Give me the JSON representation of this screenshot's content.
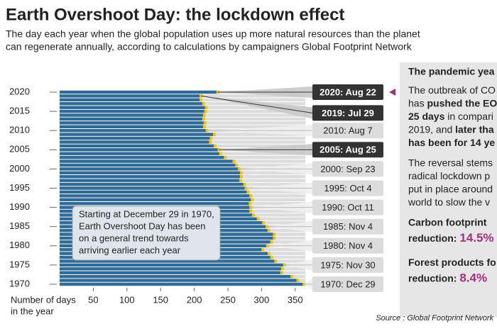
{
  "title": "Earth Overshoot Day: the lockdown effect",
  "subtitle": [
    "The day each year when the global population uses up more natural resources than the planet",
    "can regenerate annually, according to calculations by campaigners Global Footprint Network"
  ],
  "source": "Source : Global Footprint Network",
  "chart_data": {
    "type": "barh",
    "categories": [
      "1970",
      null,
      null,
      null,
      null,
      "1975",
      null,
      null,
      null,
      null,
      "1980",
      null,
      null,
      null,
      null,
      "1985",
      null,
      null,
      null,
      null,
      "1990",
      null,
      null,
      null,
      null,
      "1995",
      null,
      null,
      null,
      null,
      "2000",
      null,
      null,
      null,
      null,
      "2005",
      null,
      null,
      null,
      null,
      "2010",
      null,
      null,
      null,
      null,
      "2015",
      null,
      null,
      null,
      null,
      "2020"
    ],
    "values": [
      363,
      354,
      345,
      330,
      331,
      334,
      321,
      315,
      311,
      302,
      309,
      315,
      319,
      319,
      311,
      308,
      303,
      295,
      288,
      284,
      284,
      283,
      286,
      284,
      280,
      277,
      275,
      269,
      270,
      270,
      267,
      263,
      259,
      246,
      239,
      237,
      231,
      224,
      225,
      230,
      219,
      215,
      216,
      214,
      215,
      217,
      218,
      214,
      210,
      210,
      235
    ],
    "value_labels": [
      "1970: Dec 29",
      null,
      null,
      null,
      null,
      "1975: Nov 30",
      null,
      null,
      null,
      null,
      "1980: Nov 4",
      null,
      null,
      null,
      null,
      "1985: Nov 4",
      null,
      null,
      null,
      null,
      "1990: Oct 11",
      null,
      null,
      null,
      null,
      "1995: Oct 4",
      null,
      null,
      null,
      null,
      "2000: Sep 23",
      null,
      null,
      null,
      null,
      "2005: Aug 25",
      null,
      null,
      null,
      null,
      "2010: Aug 7",
      null,
      null,
      null,
      null,
      null,
      null,
      null,
      null,
      "2019: Jul 29",
      "2020: Aug 22"
    ],
    "emphasized": [
      35,
      49,
      50
    ],
    "color": "#2f6b96",
    "marker_color": "#f2c200",
    "track_color": "#dcdcdc",
    "xlim": [
      0,
      365
    ],
    "xticks": [
      50,
      100,
      150,
      200,
      250,
      300,
      350
    ],
    "xlabel": [
      "Number of days",
      "in the year"
    ],
    "annotation": [
      "Starting at December 29 in 1970,",
      "Earth Overshoot Day has been",
      "on a general trend towards",
      "arriving earlier each year"
    ]
  },
  "panel": {
    "title": "The pandemic yea",
    "lines": [
      [
        {
          "text": "The outbreak of CO"
        }
      ],
      [
        {
          "text": "has "
        },
        {
          "text": "pushed the EO",
          "bold": true
        }
      ],
      [
        {
          "text": "25 days",
          "bold": true
        },
        {
          "text": " in compari"
        }
      ],
      [
        {
          "text": "2019, and "
        },
        {
          "text": "later tha",
          "bold": true
        }
      ],
      [
        {
          "text": "has been for 14 ye",
          "bold": true
        }
      ],
      [],
      [
        {
          "text": "The reversal stems"
        }
      ],
      [
        {
          "text": "radical lockdown p"
        }
      ],
      [
        {
          "text": "put in place around"
        }
      ],
      [
        {
          "text": "world to slow the v"
        }
      ],
      [],
      [
        {
          "text": "Carbon footprint",
          "bold": true
        }
      ],
      [
        {
          "text": "reduction: ",
          "bold": true
        },
        {
          "text": "14.5%",
          "bold": true,
          "color": "#a3307a",
          "big": true
        }
      ],
      [],
      [
        {
          "text": "Forest products fo",
          "bold": true
        }
      ],
      [
        {
          "text": "reduction: ",
          "bold": true
        },
        {
          "text": "8.4%",
          "bold": true,
          "color": "#a3307a",
          "big": true
        }
      ]
    ]
  }
}
